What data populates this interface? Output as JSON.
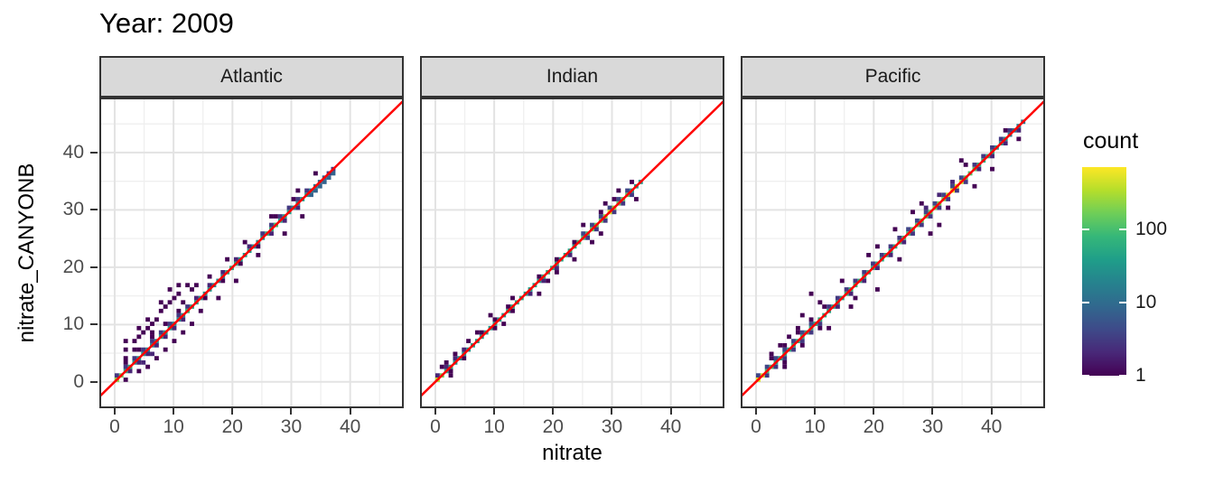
{
  "title": "Year: 2009",
  "axes": {
    "x_label": "nitrate",
    "y_label": "nitrate_CANYONB",
    "x_ticks": [
      0,
      10,
      20,
      30,
      40
    ],
    "y_ticks": [
      0,
      10,
      20,
      30,
      40
    ],
    "x_minor": [
      5,
      15,
      25,
      35,
      45
    ],
    "y_minor": [
      5,
      15,
      25,
      35,
      45
    ],
    "x_domain": [
      -2.6,
      49.1
    ],
    "y_domain": [
      -4.6,
      49.6
    ]
  },
  "legend": {
    "title": "count",
    "ticks": [
      100,
      10,
      1
    ],
    "max": 700
  },
  "colors": {
    "identity_line": "#ff0000",
    "strip_fill": "#d9d9d9",
    "strip_border": "#333333",
    "panel_border": "#333333",
    "grid_major": "#e3e3e3",
    "grid_minor": "#efefef",
    "axis_text": "#4d4d4d",
    "tick_mark": "#333333",
    "viridis": [
      "#440154",
      "#482878",
      "#3e4a89",
      "#31688e",
      "#26828e",
      "#1f9e89",
      "#35b779",
      "#6ece58",
      "#b5de2b",
      "#fde725"
    ]
  },
  "chart_data": {
    "type": "heatmap",
    "subtype": "bin2d-log-count",
    "title": "Year: 2009",
    "xlabel": "nitrate",
    "ylabel": "nitrate_CANYONB",
    "legend_title": "count",
    "legend_scale": "log10, 1 to ~700",
    "binwidth": 0.75,
    "identity_line": "y = x (red)",
    "facets": [
      {
        "label": "Atlantic",
        "data_range": [
          0,
          37.5
        ],
        "diag_runs": [
          [
            0,
            1.5,
            150
          ],
          [
            1.5,
            3,
            60
          ],
          [
            3,
            5.25,
            30
          ],
          [
            5.25,
            7.5,
            20
          ],
          [
            7.5,
            9.75,
            40
          ],
          [
            9.75,
            12,
            28
          ],
          [
            12,
            14.25,
            50
          ],
          [
            14.25,
            16.5,
            30
          ],
          [
            16.5,
            18.75,
            22
          ],
          [
            18.75,
            21,
            55
          ],
          [
            21,
            23.25,
            35
          ],
          [
            23.25,
            25.5,
            28
          ],
          [
            25.5,
            27.75,
            60
          ],
          [
            27.75,
            30,
            40
          ],
          [
            30,
            31.5,
            25
          ],
          [
            31.5,
            33,
            35
          ],
          [
            33,
            34.5,
            15
          ],
          [
            34.5,
            36,
            8
          ],
          [
            36,
            37.5,
            3
          ]
        ],
        "hot_bins": [
          [
            0.375,
            230
          ],
          [
            12.375,
            85
          ],
          [
            27.375,
            95
          ]
        ],
        "flank_runs": [
          [
            0,
            13.5,
            0.75,
            1.5,
            3
          ],
          [
            1.5,
            12,
            1.5,
            2.25,
            1
          ],
          [
            2.25,
            12.75,
            -0.75,
            1.5,
            2
          ],
          [
            13.5,
            24,
            0.75,
            2.25,
            2
          ],
          [
            15,
            25.5,
            -0.75,
            3,
            1
          ],
          [
            24.75,
            33.75,
            0.75,
            1.5,
            3
          ],
          [
            26.25,
            33,
            -0.75,
            2.25,
            2
          ],
          [
            3,
            9,
            2.25,
            3,
            1
          ],
          [
            27,
            33,
            1.5,
            3,
            1
          ],
          [
            33,
            37.5,
            -0.75,
            0.75,
            8
          ]
        ],
        "outlier_bins": [
          [
            1.5,
            3.8
          ],
          [
            2.2,
            5.3
          ],
          [
            3,
            6.8
          ],
          [
            3.8,
            7.5
          ],
          [
            4.5,
            8.3
          ],
          [
            5.3,
            9
          ],
          [
            6,
            9.8
          ],
          [
            6.8,
            10.5
          ],
          [
            7.5,
            12
          ],
          [
            8.3,
            12.8
          ],
          [
            9,
            13.5
          ],
          [
            9.8,
            14.3
          ],
          [
            10.5,
            15
          ],
          [
            11.3,
            13.6
          ],
          [
            2.2,
            0.7
          ],
          [
            3.8,
            1.5
          ],
          [
            5.3,
            2.5
          ],
          [
            6.8,
            3.8
          ],
          [
            8.3,
            5.3
          ],
          [
            9.8,
            6.8
          ],
          [
            11.3,
            8.3
          ],
          [
            12.8,
            9.8
          ],
          [
            6,
            4.5,
            2
          ],
          [
            4.5,
            3,
            2
          ],
          [
            12.8,
            15.8
          ],
          [
            13.5,
            16.5
          ],
          [
            14.3,
            12.1
          ],
          [
            15.8,
            18
          ],
          [
            17.3,
            14.8
          ],
          [
            18.8,
            21
          ],
          [
            20.3,
            17.8
          ],
          [
            21.8,
            24
          ],
          [
            24,
            21.8
          ],
          [
            26.3,
            28.5
          ],
          [
            28.5,
            25.5
          ],
          [
            30.8,
            33
          ],
          [
            31.5,
            28.9
          ],
          [
            33.8,
            36
          ],
          [
            12,
            16.5
          ],
          [
            10.5,
            16.5
          ],
          [
            9,
            15.8
          ],
          [
            7.5,
            13.5
          ],
          [
            5.3,
            10.5
          ],
          [
            3.8,
            9
          ],
          [
            2.2,
            6.8
          ]
        ]
      },
      {
        "label": "Indian",
        "data_range": [
          0,
          35.25
        ],
        "diag_runs": [
          [
            0,
            1.5,
            170
          ],
          [
            1.5,
            3,
            55
          ],
          [
            3,
            6,
            30
          ],
          [
            6,
            9,
            40
          ],
          [
            9,
            12,
            35
          ],
          [
            12,
            15,
            50
          ],
          [
            15,
            18,
            40
          ],
          [
            18,
            21,
            60
          ],
          [
            21,
            24,
            45
          ],
          [
            24,
            26.25,
            90
          ],
          [
            26.25,
            28.5,
            150
          ],
          [
            28.5,
            30.75,
            260
          ],
          [
            30.75,
            33,
            130
          ],
          [
            33,
            35.25,
            35
          ]
        ],
        "hot_bins": [
          [
            0.375,
            380
          ],
          [
            29.625,
            520
          ]
        ],
        "flank_runs": [
          [
            0,
            5.25,
            0.75,
            1.5,
            2
          ],
          [
            2.25,
            6.75,
            -0.75,
            2.25,
            1
          ],
          [
            7.5,
            14.25,
            0.75,
            2.25,
            1
          ],
          [
            9.75,
            15,
            -0.75,
            3,
            1
          ],
          [
            15.75,
            23.25,
            -0.75,
            2.25,
            2
          ],
          [
            17.25,
            24,
            0.75,
            3,
            1
          ],
          [
            24.75,
            33,
            0.75,
            1.5,
            4
          ],
          [
            25.5,
            33.75,
            -0.75,
            1.5,
            3
          ],
          [
            27.75,
            32.25,
            1.5,
            2.25,
            1
          ]
        ],
        "outlier_bins": [
          [
            0.8,
            2.3
          ],
          [
            1.5,
            3
          ],
          [
            3,
            4.6
          ],
          [
            5.3,
            6.8
          ],
          [
            9.4,
            11.3
          ],
          [
            13.1,
            14.7
          ],
          [
            17.3,
            15.6
          ],
          [
            19.1,
            17.3
          ],
          [
            20.6,
            18.9
          ],
          [
            23.3,
            21.5
          ],
          [
            26.3,
            24.1
          ],
          [
            27.8,
            25.6
          ],
          [
            24.8,
            27.2
          ],
          [
            28.6,
            31
          ],
          [
            30.8,
            33.2
          ],
          [
            33,
            34.7
          ],
          [
            33.8,
            32.2
          ],
          [
            11.3,
            9.8
          ],
          [
            6.8,
            8.4
          ],
          [
            2.3,
            0.8
          ]
        ]
      },
      {
        "label": "Pacific",
        "data_range": [
          0,
          45.75
        ],
        "diag_runs": [
          [
            0,
            1.5,
            420
          ],
          [
            1.5,
            3,
            100
          ],
          [
            3,
            6,
            50
          ],
          [
            6,
            9,
            65
          ],
          [
            9,
            12,
            55
          ],
          [
            12,
            15,
            45
          ],
          [
            15,
            18,
            70
          ],
          [
            18,
            21,
            60
          ],
          [
            21,
            24,
            55
          ],
          [
            24,
            27,
            95
          ],
          [
            27,
            30,
            130
          ],
          [
            30,
            32.25,
            180
          ],
          [
            32.25,
            35.25,
            420
          ],
          [
            35.25,
            37.5,
            120
          ],
          [
            37.5,
            40.5,
            60
          ],
          [
            40.5,
            42.75,
            30
          ],
          [
            42.75,
            45.75,
            14
          ]
        ],
        "hot_bins": [
          [
            0.375,
            520
          ],
          [
            33.375,
            650
          ],
          [
            34.125,
            540
          ]
        ],
        "flank_runs": [
          [
            0,
            10.5,
            0.75,
            1.5,
            4
          ],
          [
            1.5,
            12,
            -0.75,
            1.5,
            3
          ],
          [
            2.25,
            12.75,
            1.5,
            2.25,
            1
          ],
          [
            4.5,
            12,
            -1.5,
            3,
            1
          ],
          [
            12,
            24.75,
            0.75,
            1.5,
            3
          ],
          [
            13.5,
            25.5,
            -0.75,
            2.25,
            2
          ],
          [
            25.5,
            36,
            0.75,
            1.5,
            4
          ],
          [
            26.25,
            36.75,
            -0.75,
            1.5,
            3
          ],
          [
            28.5,
            35.25,
            1.5,
            2.25,
            2
          ],
          [
            36.75,
            44.25,
            0.75,
            1.5,
            3
          ],
          [
            37.5,
            45,
            -0.75,
            2.25,
            2
          ]
        ],
        "outlier_bins": [
          [
            2.3,
            4.5
          ],
          [
            3.8,
            6
          ],
          [
            5.3,
            7.5
          ],
          [
            6.8,
            9
          ],
          [
            9.4,
            15
          ],
          [
            12,
            9.4
          ],
          [
            14.3,
            17.3
          ],
          [
            16.9,
            14.3
          ],
          [
            18.8,
            21.8
          ],
          [
            20.6,
            16.1
          ],
          [
            20.6,
            23.6
          ],
          [
            23.3,
            26.3
          ],
          [
            24,
            21.4
          ],
          [
            26.3,
            29.3
          ],
          [
            27.8,
            30.8
          ],
          [
            29.3,
            25.9
          ],
          [
            30.8,
            27.4
          ],
          [
            32.6,
            30
          ],
          [
            34.9,
            38.3
          ],
          [
            36.8,
            34.2
          ],
          [
            39.8,
            37.1
          ],
          [
            42,
            44
          ],
          [
            44.3,
            42.4
          ],
          [
            15.8,
            12.8
          ],
          [
            7.5,
            11.3
          ],
          [
            4.5,
            2.3
          ],
          [
            10.5,
            13.9
          ],
          [
            35.3,
            37.9
          ]
        ]
      }
    ]
  }
}
